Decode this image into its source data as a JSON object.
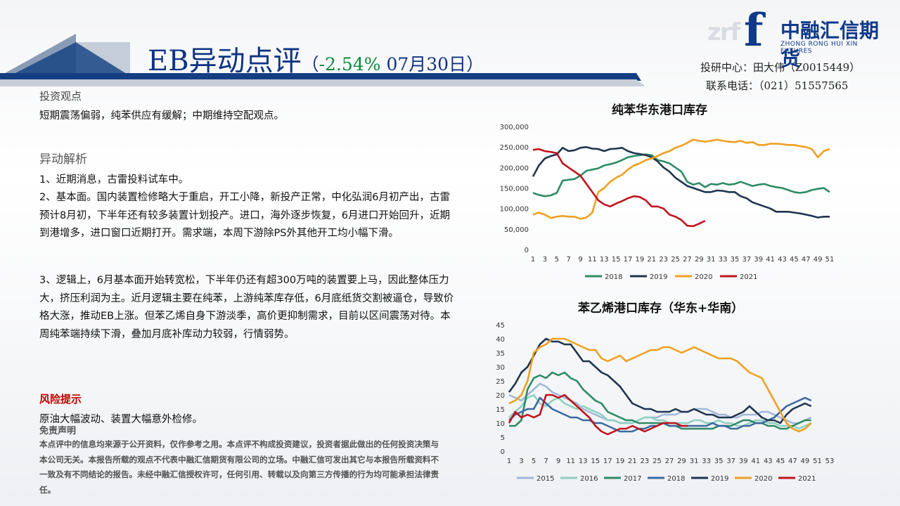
{
  "brand": {
    "logo_ghost": "zrf",
    "logo_mark": "f",
    "name": "中融汇信期货",
    "sub": "ZHONG RONG HUI XIN FUTURES"
  },
  "header": {
    "title": "EB异动点评",
    "paren_open": "（",
    "change": "-2.54%",
    "date": "07月30日",
    "paren_close": "）",
    "contact_line1": "投研中心：田大伟（Z0015449）",
    "contact_line2": "联系电话：（021）51557565"
  },
  "view": {
    "heading": "投资观点",
    "text": "短期震荡偏弱，纯苯供应有缓解；中期维持空配观点。"
  },
  "analysis": {
    "heading": "异动解析",
    "p1": "1、近期消息，古雷投料试车中。",
    "p2": "2、基本面。国内装置检修略大于重启，开工小降，新投产正常，中化弘润6月初产出，古雷预计8月初，下半年还有较多装置计划投产。进口，海外逐步恢复，6月进口开始回升，近期到港增多，进口窗口近期打开。需求端，本周下游除PS外其他开工均小幅下滑。",
    "p3": "3、逻辑上，6月基本面开始转宽松，下半年仍还有超300万吨的装置要上马，因此整体压力大，挤压利润为主。近月逻辑主要在纯苯，上游纯苯库存低，6月底纸货交割被逼仓，导致价格大涨，推动EB上涨。但苯乙烯自身下游淡季，高价更抑制需求，目前以区间震荡对待。本周纯苯端持续下滑，叠加月底补库动力较弱，行情弱势。"
  },
  "risk": {
    "heading": "风险提示",
    "text": "原油大幅波动、装置大幅意外检修。"
  },
  "disclaimer": {
    "heading": "免责声明",
    "text": "本点评中的信息均来源于公开资料，仅作参考之用。本点评不构成投资建议，投资者据此做出的任何投资决策与本公司无关。本报告所载的观点不代表中融汇信期货有限公司的立场。中融汇信可发出其它与本报告所载资料不一致及有不同结论的报告。未经中融汇信授权许可，任何引用、转载以及向第三方传播的行为均可能承担法律责任。"
  },
  "chart_data": [
    {
      "type": "line",
      "title": "纯苯华东港口库存",
      "ylim": [
        0,
        300000
      ],
      "yticks": [
        "0",
        "50,000",
        "100,000",
        "150,000",
        "200,000",
        "250,000",
        "300,000"
      ],
      "xticks": [
        "1",
        "3",
        "5",
        "7",
        "9",
        "11",
        "13",
        "15",
        "17",
        "19",
        "21",
        "23",
        "25",
        "27",
        "29",
        "31",
        "33",
        "35",
        "37",
        "39",
        "41",
        "43",
        "45",
        "47",
        "49",
        "51"
      ],
      "legend_position": "bottom",
      "series": [
        {
          "name": "2018",
          "color": "#2e8b66",
          "values": [
            138000,
            133000,
            130000,
            132000,
            138000,
            168000,
            170000,
            172000,
            180000,
            192000,
            195000,
            198000,
            205000,
            208000,
            212000,
            218000,
            225000,
            228000,
            230000,
            232000,
            230000,
            218000,
            215000,
            210000,
            200000,
            190000,
            165000,
            158000,
            162000,
            152000,
            160000,
            158000,
            162000,
            158000,
            160000,
            165000,
            160000,
            155000,
            158000,
            160000,
            155000,
            152000,
            150000,
            145000,
            140000,
            138000,
            140000,
            145000,
            148000,
            150000,
            140000
          ]
        },
        {
          "name": "2019",
          "color": "#1f3550",
          "values": [
            178000,
            205000,
            222000,
            228000,
            232000,
            248000,
            240000,
            242000,
            248000,
            250000,
            246000,
            245000,
            240000,
            245000,
            246000,
            248000,
            240000,
            235000,
            233000,
            230000,
            225000,
            215000,
            200000,
            190000,
            175000,
            165000,
            155000,
            150000,
            145000,
            140000,
            140000,
            144000,
            143000,
            140000,
            140000,
            130000,
            125000,
            115000,
            110000,
            105000,
            100000,
            92000,
            92000,
            92000,
            90000,
            88000,
            85000,
            82000,
            78000,
            80000,
            80000
          ]
        },
        {
          "name": "2020",
          "color": "#f0a020",
          "values": [
            85000,
            90000,
            85000,
            77000,
            80000,
            82000,
            80000,
            80000,
            75000,
            78000,
            90000,
            140000,
            150000,
            165000,
            175000,
            182000,
            195000,
            205000,
            210000,
            218000,
            222000,
            228000,
            235000,
            240000,
            248000,
            253000,
            260000,
            268000,
            265000,
            263000,
            265000,
            268000,
            265000,
            263000,
            262000,
            265000,
            260000,
            262000,
            255000,
            255000,
            258000,
            258000,
            257000,
            255000,
            255000,
            252000,
            250000,
            245000,
            225000,
            240000,
            245000
          ]
        },
        {
          "name": "2021",
          "color": "#c0141e",
          "values": [
            243000,
            245000,
            240000,
            238000,
            235000,
            210000,
            200000,
            190000,
            180000,
            160000,
            140000,
            120000,
            110000,
            105000,
            112000,
            118000,
            125000,
            130000,
            128000,
            120000,
            105000,
            105000,
            100000,
            85000,
            80000,
            72000,
            58000,
            57000,
            63000,
            70000
          ]
        }
      ]
    },
    {
      "type": "line",
      "title": "苯乙烯港口库存（华东+华南）",
      "ylim": [
        0,
        45
      ],
      "yticks": [
        "0",
        "5",
        "10",
        "15",
        "20",
        "25",
        "30",
        "35",
        "40",
        "45"
      ],
      "xticks": [
        "1",
        "3",
        "5",
        "7",
        "9",
        "11",
        "13",
        "15",
        "17",
        "19",
        "21",
        "23",
        "25",
        "27",
        "29",
        "31",
        "33",
        "35",
        "37",
        "39",
        "41",
        "43",
        "45",
        "47",
        "49",
        "51",
        "53"
      ],
      "legend_position": "bottom",
      "series": [
        {
          "name": "2015",
          "color": "#9fb8d8",
          "values": [
            20,
            19,
            18,
            20,
            22,
            24,
            23,
            21,
            20,
            19,
            18,
            17,
            15,
            14,
            13,
            12,
            11,
            11,
            10,
            10,
            10,
            11,
            12,
            12,
            12,
            13,
            13,
            13,
            14,
            14,
            15,
            15,
            15,
            14,
            13,
            13,
            12,
            12,
            13,
            13,
            13,
            14,
            14,
            13,
            12,
            11,
            10,
            10,
            11,
            12
          ]
        },
        {
          "name": "2016",
          "color": "#8fd0c0",
          "values": [
            12,
            14,
            16,
            19,
            20,
            17,
            16,
            18,
            19,
            17,
            16,
            15,
            16,
            15,
            14,
            13,
            11,
            11,
            10,
            10,
            10,
            11,
            12,
            12,
            11,
            11,
            10,
            10,
            10,
            10,
            11,
            11,
            10,
            10,
            11,
            10,
            10,
            9,
            9,
            10,
            11,
            11,
            10,
            10,
            9,
            9,
            9,
            8,
            9,
            10
          ]
        },
        {
          "name": "2017",
          "color": "#2e8b66",
          "values": [
            9,
            9,
            11,
            22,
            26,
            27,
            26,
            28,
            27,
            28,
            26,
            25,
            22,
            20,
            18,
            17,
            14,
            13,
            12,
            11,
            11,
            10,
            10,
            10,
            10,
            10,
            9,
            9,
            8,
            8,
            8,
            8,
            8,
            8,
            9,
            9,
            9,
            10,
            11,
            11,
            10,
            10,
            9,
            9,
            8,
            8,
            9,
            10,
            11,
            11
          ]
        },
        {
          "name": "2018",
          "color": "#3a6aa0",
          "values": [
            11,
            13,
            14,
            15,
            15,
            19,
            17,
            15,
            14,
            13,
            12,
            12,
            11,
            11,
            10,
            10,
            9,
            8,
            7,
            7,
            7,
            8,
            8,
            9,
            9,
            10,
            9,
            9,
            9,
            9,
            9,
            9,
            9,
            10,
            9,
            9,
            8,
            8,
            9,
            9,
            10,
            10,
            11,
            12,
            14,
            16,
            17,
            18,
            19,
            18
          ]
        },
        {
          "name": "2019",
          "color": "#1f3550",
          "values": [
            21,
            24,
            28,
            30,
            34,
            38,
            40,
            39,
            39,
            38,
            38,
            35,
            32,
            32,
            30,
            28,
            27,
            25,
            23,
            20,
            17,
            16,
            15,
            15,
            14,
            14,
            14,
            15,
            14,
            14,
            15,
            14,
            13,
            13,
            12,
            12,
            12,
            13,
            14,
            16,
            14,
            12,
            11,
            11,
            10,
            13,
            15,
            16,
            17,
            16
          ]
        },
        {
          "name": "2020",
          "color": "#f0a020",
          "values": [
            17,
            18,
            20,
            25,
            35,
            37,
            38,
            40,
            40,
            40,
            39,
            38,
            37,
            36,
            36,
            33,
            32,
            33,
            34,
            32,
            33,
            34,
            35,
            36,
            36,
            37,
            37,
            36,
            35,
            36,
            37,
            36,
            35,
            34,
            33,
            33,
            33,
            32,
            30,
            28,
            27,
            26,
            22,
            18,
            14,
            10,
            8,
            7,
            8,
            10
          ]
        },
        {
          "name": "2021",
          "color": "#c0141e",
          "values": [
            10,
            14,
            12,
            13,
            12,
            13,
            20,
            20,
            19,
            20,
            18,
            16,
            14,
            12,
            9,
            7,
            6,
            7,
            8,
            8,
            9,
            8,
            7,
            8,
            9,
            10,
            10,
            10,
            9,
            9
          ]
        }
      ]
    }
  ]
}
